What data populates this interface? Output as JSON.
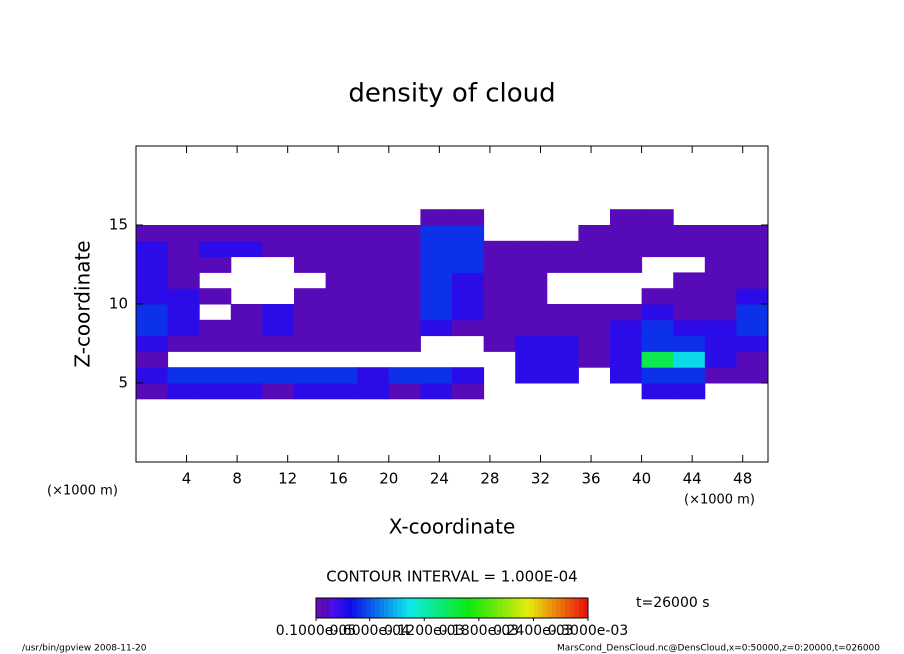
{
  "chart_data": {
    "type": "heatmap",
    "title": "density of cloud",
    "x_label": "X-coordinate",
    "y_label": "Z-coordinate",
    "x_unit_left": "(×1000 m)",
    "x_unit_right": "(×1000 m)",
    "xlim": [
      0,
      50
    ],
    "ylim": [
      0,
      20
    ],
    "xticks": [
      4,
      8,
      12,
      16,
      20,
      24,
      28,
      32,
      36,
      40,
      44,
      48
    ],
    "yticks": [
      5,
      10,
      15
    ],
    "xbins": [
      0,
      2.5,
      5,
      7.5,
      10,
      12.5,
      15,
      17.5,
      20,
      22.5,
      25,
      27.5,
      30,
      32.5,
      35,
      37.5,
      40,
      42.5,
      45,
      47.5,
      50
    ],
    "ybins": [
      4,
      5,
      6,
      7,
      8,
      9,
      10,
      11,
      12,
      13,
      14,
      15,
      16
    ],
    "z": [
      [
        1e-05,
        3e-05,
        3e-05,
        3e-05,
        1e-05,
        3e-05,
        3e-05,
        3e-05,
        1e-05,
        3e-05,
        1e-05,
        0,
        0,
        0,
        0,
        0,
        3e-05,
        3e-05,
        0,
        0
      ],
      [
        3e-05,
        5e-05,
        5e-05,
        5e-05,
        5e-05,
        5e-05,
        5e-05,
        3e-05,
        5e-05,
        5e-05,
        3e-05,
        0,
        3e-05,
        3e-05,
        0,
        3e-05,
        5e-05,
        5e-05,
        1e-05,
        1e-05
      ],
      [
        1e-05,
        0,
        0,
        0,
        0,
        0,
        0,
        0,
        0,
        0,
        0,
        0,
        3e-05,
        3e-05,
        1e-05,
        3e-05,
        0.00015,
        0.0001,
        3e-05,
        1e-05
      ],
      [
        3e-05,
        1e-05,
        1e-05,
        1e-05,
        1e-05,
        1e-05,
        1e-05,
        1e-05,
        1e-05,
        0,
        0,
        1e-05,
        3e-05,
        3e-05,
        1e-05,
        3e-05,
        5e-05,
        5e-05,
        3e-05,
        3e-05
      ],
      [
        5e-05,
        3e-05,
        1e-05,
        1e-05,
        3e-05,
        1e-05,
        1e-05,
        1e-05,
        1e-05,
        3e-05,
        1e-05,
        1e-05,
        1e-05,
        1e-05,
        1e-05,
        3e-05,
        5e-05,
        3e-05,
        3e-05,
        5e-05
      ],
      [
        5e-05,
        3e-05,
        0,
        1e-05,
        3e-05,
        1e-05,
        1e-05,
        1e-05,
        1e-05,
        5e-05,
        3e-05,
        1e-05,
        1e-05,
        1e-05,
        1e-05,
        1e-05,
        3e-05,
        1e-05,
        1e-05,
        5e-05
      ],
      [
        3e-05,
        3e-05,
        1e-05,
        0,
        0,
        1e-05,
        1e-05,
        1e-05,
        1e-05,
        5e-05,
        3e-05,
        1e-05,
        1e-05,
        0,
        0,
        0,
        1e-05,
        1e-05,
        1e-05,
        3e-05
      ],
      [
        3e-05,
        1e-05,
        0,
        0,
        0,
        0,
        1e-05,
        1e-05,
        1e-05,
        5e-05,
        3e-05,
        1e-05,
        1e-05,
        0,
        0,
        0,
        0,
        1e-05,
        1e-05,
        1e-05
      ],
      [
        3e-05,
        1e-05,
        1e-05,
        0,
        0,
        1e-05,
        1e-05,
        1e-05,
        1e-05,
        5e-05,
        5e-05,
        1e-05,
        1e-05,
        1e-05,
        1e-05,
        1e-05,
        0,
        0,
        1e-05,
        1e-05
      ],
      [
        3e-05,
        1e-05,
        3e-05,
        3e-05,
        1e-05,
        1e-05,
        1e-05,
        1e-05,
        1e-05,
        5e-05,
        5e-05,
        1e-05,
        1e-05,
        1e-05,
        1e-05,
        1e-05,
        1e-05,
        1e-05,
        1e-05,
        1e-05
      ],
      [
        1e-05,
        1e-05,
        1e-05,
        1e-05,
        1e-05,
        1e-05,
        1e-05,
        1e-05,
        1e-05,
        5e-05,
        5e-05,
        0,
        0,
        0,
        1e-05,
        1e-05,
        1e-05,
        1e-05,
        1e-05,
        1e-05
      ],
      [
        0,
        0,
        0,
        0,
        0,
        0,
        0,
        0,
        0,
        1e-05,
        1e-05,
        0,
        0,
        0,
        0,
        1e-05,
        1e-05,
        0,
        0,
        0
      ]
    ],
    "clim": [
      1e-06,
      0.0003
    ],
    "colorbar_ticks": [
      {
        "value": 1e-06,
        "label": "0.1000e-05"
      },
      {
        "value": 6e-05,
        "label": "0.6000e-04"
      },
      {
        "value": 0.00012,
        "label": "0.1200e-03"
      },
      {
        "value": 0.00018,
        "label": "0.1800e-03"
      },
      {
        "value": 0.00024,
        "label": "0.2400e-03"
      },
      {
        "value": 0.0003,
        "label": "0.3000e-03"
      }
    ],
    "contour_interval": "CONTOUR INTERVAL = 1.000E-04",
    "time_label": "t=26000 s",
    "footer_left": "/usr/bin/gpview  2008-11-20",
    "footer_right": "MarsCond_DensCloud.nc@DensCloud,x=0:50000,z=0:20000,t=026000"
  }
}
